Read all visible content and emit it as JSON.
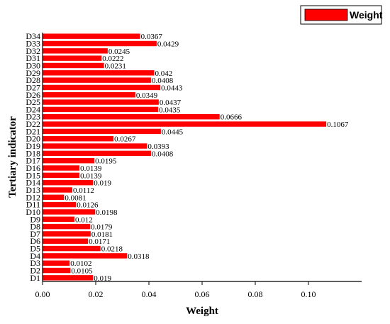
{
  "chart_data": {
    "type": "bar",
    "orientation": "horizontal",
    "categories": [
      "D1",
      "D2",
      "D3",
      "D4",
      "D5",
      "D6",
      "D7",
      "D8",
      "D9",
      "D10",
      "D11",
      "D12",
      "D13",
      "D14",
      "D15",
      "D16",
      "D17",
      "D18",
      "D19",
      "D20",
      "D21",
      "D22",
      "D23",
      "D24",
      "D25",
      "D26",
      "D27",
      "D28",
      "D29",
      "D30",
      "D31",
      "D32",
      "D33",
      "D34"
    ],
    "series": [
      {
        "name": "Weight",
        "color": "#ff0000",
        "values": [
          0.019,
          0.0105,
          0.0102,
          0.0318,
          0.0218,
          0.0171,
          0.0181,
          0.0179,
          0.012,
          0.0198,
          0.0126,
          0.0081,
          0.0112,
          0.019,
          0.0139,
          0.0139,
          0.0195,
          0.0408,
          0.0393,
          0.0267,
          0.0445,
          0.1067,
          0.0666,
          0.0435,
          0.0437,
          0.0349,
          0.0443,
          0.0408,
          0.042,
          0.0231,
          0.0222,
          0.0245,
          0.0429,
          0.0367
        ],
        "labels": [
          "0.019",
          "0.0105",
          "0.0102",
          "0.0318",
          "0.0218",
          "0.0171",
          "0.0181",
          "0.0179",
          "0.012",
          "0.0198",
          "0.0126",
          "0.0081",
          "0.0112",
          "0.019",
          "0.0139",
          "0.0139",
          "0.0195",
          "0.0408",
          "0.0393",
          "0.0267",
          "0.0445",
          "0.1067",
          "0.0666",
          "0.0435",
          "0.0437",
          "0.0349",
          "0.0443",
          "0.0408",
          "0.042",
          "0.0231",
          "0.0222",
          "0.0245",
          "0.0429",
          "0.0367"
        ]
      }
    ],
    "xlabel": "Weight",
    "ylabel": "Tertiary indicator",
    "xlim": [
      0,
      0.12
    ],
    "xticks": [
      0,
      0.02,
      0.04,
      0.06,
      0.08,
      0.1
    ],
    "xtick_labels": [
      "0.00",
      "0.02",
      "0.04",
      "0.06",
      "0.08",
      "0.10"
    ],
    "grid": false,
    "legend": {
      "position": "top-right",
      "entries": [
        "Weight"
      ]
    }
  }
}
